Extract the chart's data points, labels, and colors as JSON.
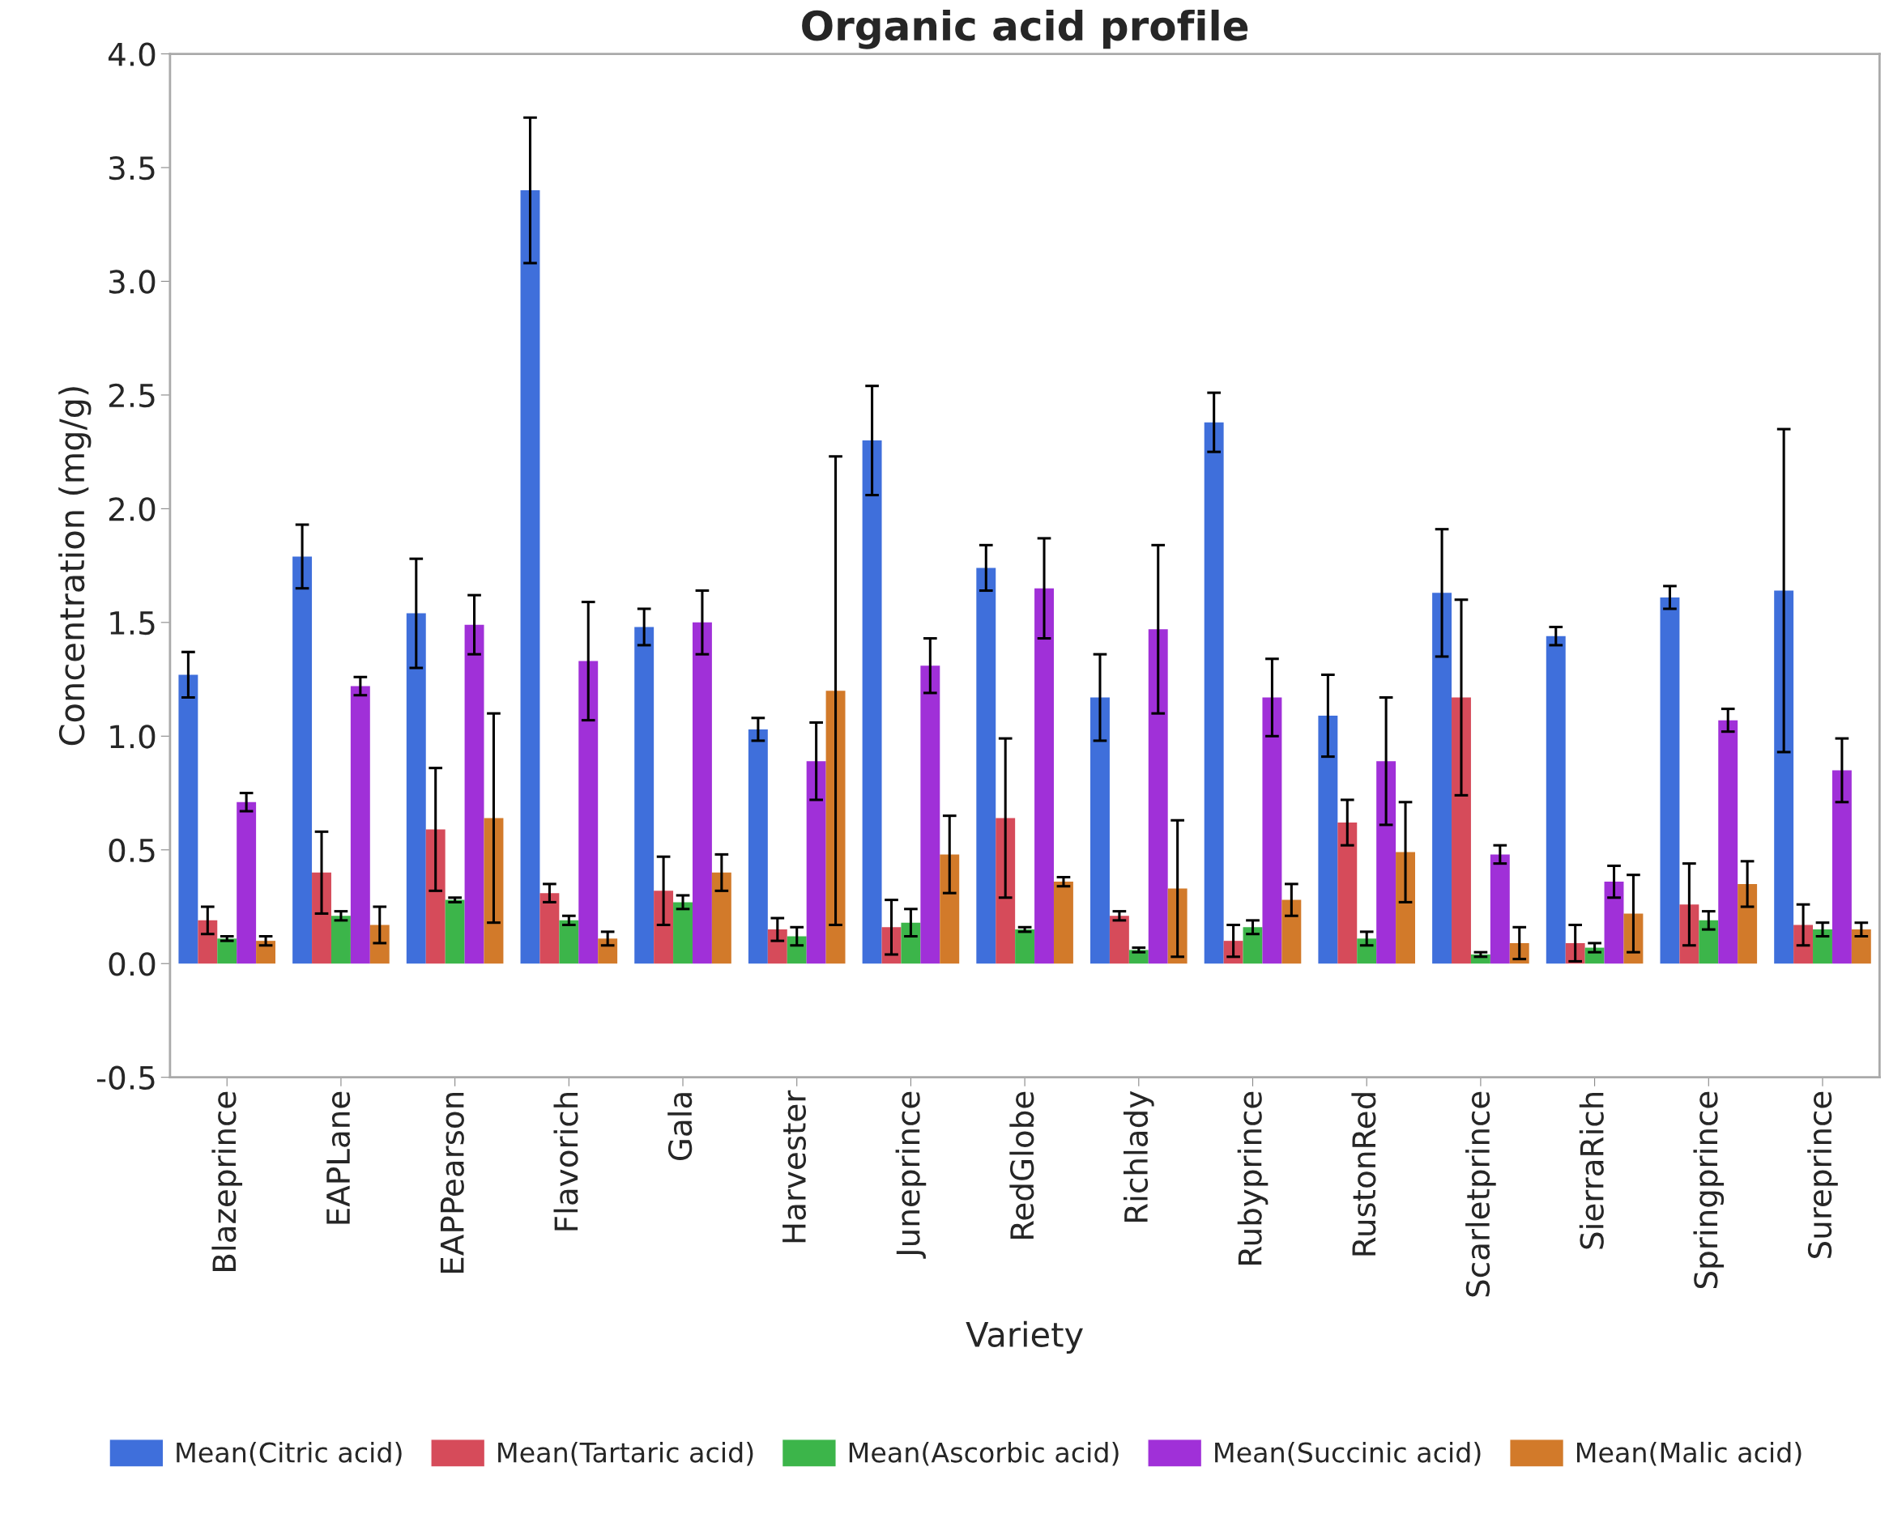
{
  "chart_data": {
    "type": "bar",
    "title": "Organic acid profile",
    "xlabel": "Variety",
    "ylabel": "Concentration (mg/g)",
    "categories": [
      "Blazeprince",
      "EAPLane",
      "EAPPearson",
      "Flavorich",
      "Gala",
      "Harvester",
      "Juneprince",
      "RedGlobe",
      "Richlady",
      "Rubyprince",
      "RustonRed",
      "Scarletprince",
      "SierraRich",
      "Springprince",
      "Sureprince"
    ],
    "series": [
      {
        "name": "Mean(Citric acid)",
        "color": "#3f6fdb",
        "values": [
          1.27,
          1.79,
          1.54,
          3.4,
          1.48,
          1.03,
          2.3,
          1.74,
          1.17,
          2.38,
          1.09,
          1.63,
          1.44,
          1.61,
          1.64
        ],
        "errors": [
          0.1,
          0.14,
          0.24,
          0.32,
          0.08,
          0.05,
          0.24,
          0.1,
          0.19,
          0.13,
          0.18,
          0.28,
          0.04,
          0.05,
          0.71
        ]
      },
      {
        "name": "Mean(Tartaric acid)",
        "color": "#d64b5a",
        "values": [
          0.19,
          0.4,
          0.59,
          0.31,
          0.32,
          0.15,
          0.16,
          0.64,
          0.21,
          0.1,
          0.62,
          1.17,
          0.09,
          0.26,
          0.17
        ],
        "errors": [
          0.06,
          0.18,
          0.27,
          0.04,
          0.15,
          0.05,
          0.12,
          0.35,
          0.02,
          0.07,
          0.1,
          0.43,
          0.08,
          0.18,
          0.09
        ]
      },
      {
        "name": "Mean(Ascorbic acid)",
        "color": "#3cb54a",
        "values": [
          0.11,
          0.21,
          0.28,
          0.19,
          0.27,
          0.12,
          0.18,
          0.15,
          0.06,
          0.16,
          0.11,
          0.04,
          0.07,
          0.19,
          0.15
        ],
        "errors": [
          0.01,
          0.02,
          0.01,
          0.02,
          0.03,
          0.04,
          0.06,
          0.01,
          0.01,
          0.03,
          0.03,
          0.01,
          0.02,
          0.04,
          0.03
        ]
      },
      {
        "name": "Mean(Succinic acid)",
        "color": "#a030d8",
        "values": [
          0.71,
          1.22,
          1.49,
          1.33,
          1.5,
          0.89,
          1.31,
          1.65,
          1.47,
          1.17,
          0.89,
          0.48,
          0.36,
          1.07,
          0.85
        ],
        "errors": [
          0.04,
          0.04,
          0.13,
          0.26,
          0.14,
          0.17,
          0.12,
          0.22,
          0.37,
          0.17,
          0.28,
          0.04,
          0.07,
          0.05,
          0.14
        ]
      },
      {
        "name": "Mean(Malic acid)",
        "color": "#d27a2a",
        "values": [
          0.1,
          0.17,
          0.64,
          0.11,
          0.4,
          1.2,
          0.48,
          0.36,
          0.33,
          0.28,
          0.49,
          0.09,
          0.22,
          0.35,
          0.15
        ],
        "errors": [
          0.02,
          0.08,
          0.46,
          0.03,
          0.08,
          1.03,
          0.17,
          0.02,
          0.3,
          0.07,
          0.22,
          0.07,
          0.17,
          0.1,
          0.03
        ]
      }
    ],
    "ylim": [
      -0.5,
      4.0
    ],
    "yticks": [
      {
        "value": -0.5,
        "label": "-0.5"
      },
      {
        "value": 0,
        "label": "0.0"
      },
      {
        "value": 0.5,
        "label": "0.5"
      },
      {
        "value": 1,
        "label": "1.0"
      },
      {
        "value": 1.5,
        "label": "1.5"
      },
      {
        "value": 2,
        "label": "2.0"
      },
      {
        "value": 2.5,
        "label": "2.5"
      },
      {
        "value": 3,
        "label": "3.0"
      },
      {
        "value": 3.5,
        "label": "3.5"
      },
      {
        "value": 4,
        "label": "4.0"
      }
    ],
    "legend": "bottom"
  }
}
